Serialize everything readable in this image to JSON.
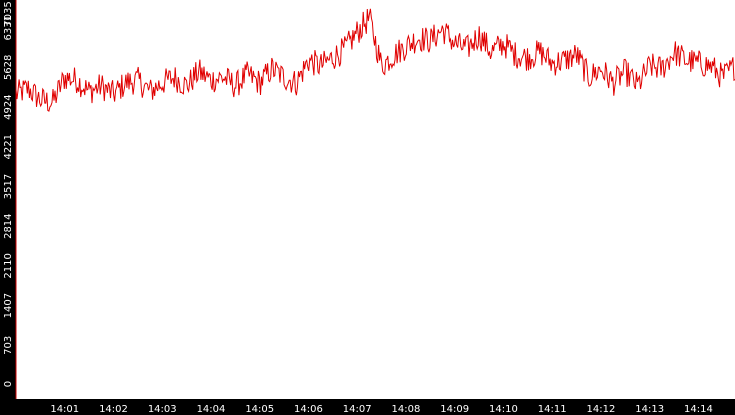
{
  "chart_data": {
    "type": "line",
    "title": "",
    "xlabel": "",
    "ylabel": "",
    "ylim": [
      0,
      7035
    ],
    "y_ticks": [
      "0",
      "703",
      "1407",
      "2110",
      "2814",
      "3517",
      "4221",
      "4924",
      "5628",
      "6331",
      "7035"
    ],
    "x_ticks": [
      "14:01",
      "14:02",
      "14:03",
      "14:04",
      "14:05",
      "14:06",
      "14:07",
      "14:08",
      "14:09",
      "14:10",
      "14:11",
      "14:12",
      "14:13",
      "14:14"
    ],
    "x_range_minutes": [
      0,
      14.75
    ],
    "x_tick_positions_minutes": [
      1,
      2,
      3,
      4,
      5,
      6,
      7,
      8,
      9,
      10,
      11,
      12,
      13,
      14
    ],
    "grid": false,
    "series": [
      {
        "color": "#e00000",
        "x": [
          0.0,
          0.25,
          0.5,
          0.75,
          1.0,
          1.25,
          1.5,
          1.75,
          2.0,
          2.25,
          2.5,
          2.75,
          3.0,
          3.25,
          3.5,
          3.75,
          4.0,
          4.25,
          4.5,
          4.75,
          5.0,
          5.25,
          5.5,
          5.75,
          6.0,
          6.25,
          6.5,
          6.75,
          7.0,
          7.25,
          7.5,
          7.75,
          8.0,
          8.25,
          8.5,
          8.75,
          9.0,
          9.25,
          9.5,
          9.75,
          10.0,
          10.25,
          10.5,
          10.75,
          11.0,
          11.25,
          11.5,
          11.75,
          12.0,
          12.25,
          12.5,
          12.75,
          13.0,
          13.25,
          13.5,
          13.75,
          14.0,
          14.25,
          14.5,
          14.75
        ],
        "values": [
          5400,
          5500,
          5300,
          5250,
          5700,
          5650,
          5450,
          5550,
          5400,
          5600,
          5650,
          5450,
          5600,
          5700,
          5550,
          5800,
          5650,
          5700,
          5550,
          5750,
          5600,
          5850,
          5700,
          5600,
          6000,
          5900,
          6050,
          6200,
          6500,
          6750,
          5900,
          6100,
          6250,
          6400,
          6350,
          6550,
          6300,
          6200,
          6450,
          6150,
          6300,
          6100,
          6050,
          6150,
          5950,
          6000,
          6100,
          5700,
          5850,
          5600,
          5800,
          5550,
          5900,
          5850,
          6150,
          6000,
          5950,
          5900,
          5700,
          5900
        ]
      }
    ]
  }
}
